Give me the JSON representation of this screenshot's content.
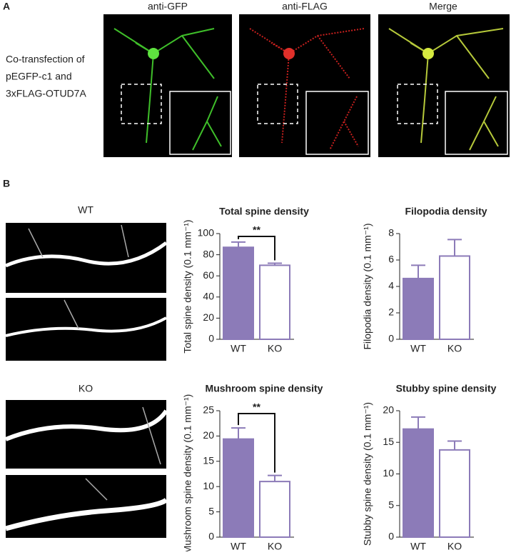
{
  "panels": {
    "A": {
      "label": "A",
      "row_label": [
        "Co-transfection of",
        "pEGFP-c1 and",
        "3xFLAG-OTUD7A"
      ],
      "columns": [
        "anti-GFP",
        "anti-FLAG",
        "Merge"
      ]
    },
    "B": {
      "label": "B",
      "groups": [
        "WT",
        "KO"
      ]
    }
  },
  "chart_data": [
    {
      "type": "bar",
      "title": "Total spine density",
      "y_label": "Total spine density (0.1 mm⁻¹)",
      "categories": [
        "WT",
        "KO"
      ],
      "values": [
        87,
        70
      ],
      "errors": [
        5,
        2
      ],
      "colors": [
        "#8c7bb8",
        "#ffffff"
      ],
      "edge_color": "#8c7bb8",
      "ylim": [
        0,
        100
      ],
      "yticks": [
        0,
        20,
        40,
        60,
        80,
        100
      ],
      "annotation": "**"
    },
    {
      "type": "bar",
      "title": "Filopodia density",
      "y_label": "Filopodia density (0.1 mm⁻¹)",
      "categories": [
        "WT",
        "KO"
      ],
      "values": [
        4.6,
        6.3
      ],
      "errors": [
        1.0,
        1.25
      ],
      "colors": [
        "#8c7bb8",
        "#ffffff"
      ],
      "edge_color": "#8c7bb8",
      "ylim": [
        0,
        8
      ],
      "yticks": [
        0,
        2,
        4,
        6,
        8
      ]
    },
    {
      "type": "bar",
      "title": "Mushroom spine density",
      "y_label": "Mushroom spine density (0.1 mm⁻¹)",
      "categories": [
        "WT",
        "KO"
      ],
      "values": [
        19.4,
        11.0
      ],
      "errors": [
        2.2,
        1.2
      ],
      "colors": [
        "#8c7bb8",
        "#ffffff"
      ],
      "edge_color": "#8c7bb8",
      "ylim": [
        0,
        25
      ],
      "yticks": [
        0,
        5,
        10,
        15,
        20,
        25
      ],
      "annotation": "**"
    },
    {
      "type": "bar",
      "title": "Stubby spine density",
      "y_label": "Stubby spine density (0.1 mm⁻¹)",
      "categories": [
        "WT",
        "KO"
      ],
      "values": [
        17.1,
        13.8
      ],
      "errors": [
        1.9,
        1.4
      ],
      "colors": [
        "#8c7bb8",
        "#ffffff"
      ],
      "edge_color": "#8c7bb8",
      "ylim": [
        0,
        20
      ],
      "yticks": [
        0,
        5,
        10,
        15,
        20
      ]
    }
  ]
}
